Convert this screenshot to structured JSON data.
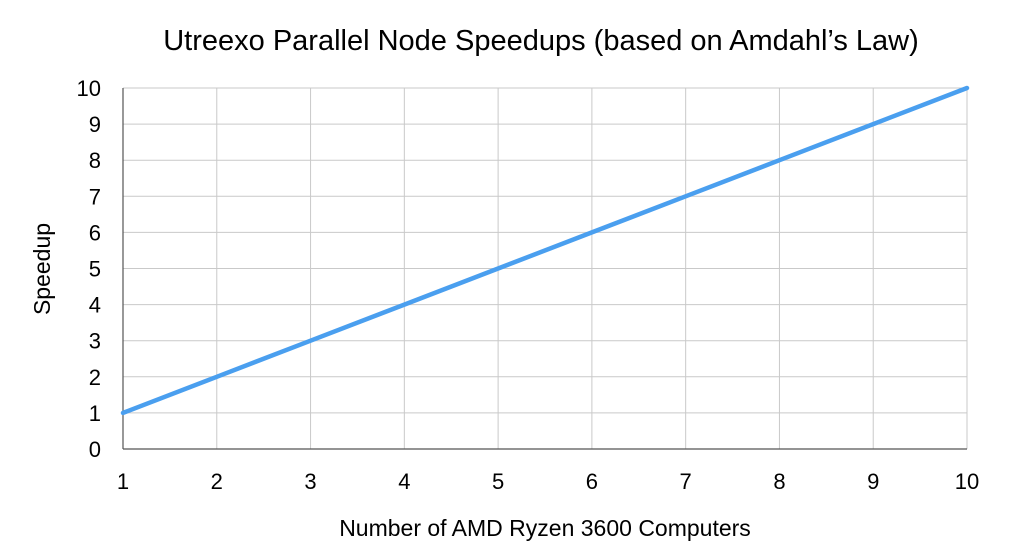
{
  "chart_data": {
    "type": "line",
    "title": "Utreexo Parallel Node Speedups (based on Amdahl’s Law)",
    "xlabel": "Number of AMD Ryzen 3600 Computers",
    "ylabel": "Speedup",
    "x": [
      1,
      2,
      3,
      4,
      5,
      6,
      7,
      8,
      9,
      10
    ],
    "series": [
      {
        "values": [
          1,
          2,
          3,
          4,
          5,
          6,
          7,
          8,
          9,
          10
        ],
        "color": "#4a9fef"
      }
    ],
    "xlim": [
      1,
      10
    ],
    "ylim": [
      0,
      10
    ],
    "x_ticks": [
      "1",
      "2",
      "3",
      "4",
      "5",
      "6",
      "7",
      "8",
      "9",
      "10"
    ],
    "y_ticks": [
      "0",
      "1",
      "2",
      "3",
      "4",
      "5",
      "6",
      "7",
      "8",
      "9",
      "10"
    ],
    "grid": true,
    "legend": "none"
  }
}
